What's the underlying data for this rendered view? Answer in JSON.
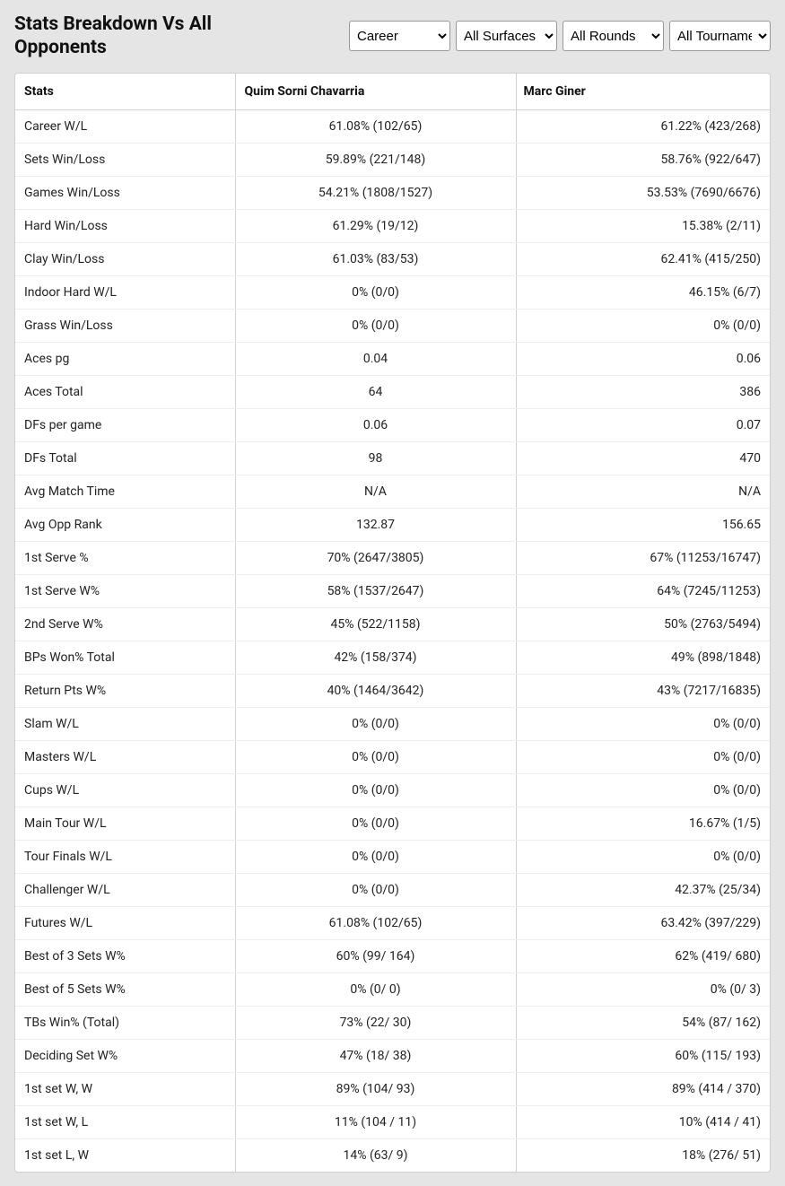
{
  "title": "Stats Breakdown Vs All Opponents",
  "filters": {
    "timeframe": {
      "selected": "Career",
      "options": [
        "Career"
      ]
    },
    "surface": {
      "selected": "All Surfaces",
      "options": [
        "All Surfaces"
      ]
    },
    "round": {
      "selected": "All Rounds",
      "options": [
        "All Rounds"
      ]
    },
    "tournament": {
      "selected": "All Tournaments",
      "options": [
        "All Tournaments"
      ]
    }
  },
  "table": {
    "columns": [
      "Stats",
      "Quim Sorni Chavarria",
      "Marc Giner"
    ],
    "rows": [
      [
        "Career W/L",
        "61.08% (102/65)",
        "61.22% (423/268)"
      ],
      [
        "Sets Win/Loss",
        "59.89% (221/148)",
        "58.76% (922/647)"
      ],
      [
        "Games Win/Loss",
        "54.21% (1808/1527)",
        "53.53% (7690/6676)"
      ],
      [
        "Hard Win/Loss",
        "61.29% (19/12)",
        "15.38% (2/11)"
      ],
      [
        "Clay Win/Loss",
        "61.03% (83/53)",
        "62.41% (415/250)"
      ],
      [
        "Indoor Hard W/L",
        "0% (0/0)",
        "46.15% (6/7)"
      ],
      [
        "Grass Win/Loss",
        "0% (0/0)",
        "0% (0/0)"
      ],
      [
        "Aces pg",
        "0.04",
        "0.06"
      ],
      [
        "Aces Total",
        "64",
        "386"
      ],
      [
        "DFs per game",
        "0.06",
        "0.07"
      ],
      [
        "DFs Total",
        "98",
        "470"
      ],
      [
        "Avg Match Time",
        "N/A",
        "N/A"
      ],
      [
        "Avg Opp Rank",
        "132.87",
        "156.65"
      ],
      [
        "1st Serve %",
        "70% (2647/3805)",
        "67% (11253/16747)"
      ],
      [
        "1st Serve W%",
        "58% (1537/2647)",
        "64% (7245/11253)"
      ],
      [
        "2nd Serve W%",
        "45% (522/1158)",
        "50% (2763/5494)"
      ],
      [
        "BPs Won% Total",
        "42% (158/374)",
        "49% (898/1848)"
      ],
      [
        "Return Pts W%",
        "40% (1464/3642)",
        "43% (7217/16835)"
      ],
      [
        "Slam W/L",
        "0% (0/0)",
        "0% (0/0)"
      ],
      [
        "Masters W/L",
        "0% (0/0)",
        "0% (0/0)"
      ],
      [
        "Cups W/L",
        "0% (0/0)",
        "0% (0/0)"
      ],
      [
        "Main Tour W/L",
        "0% (0/0)",
        "16.67% (1/5)"
      ],
      [
        "Tour Finals W/L",
        "0% (0/0)",
        "0% (0/0)"
      ],
      [
        "Challenger W/L",
        "0% (0/0)",
        "42.37% (25/34)"
      ],
      [
        "Futures W/L",
        "61.08% (102/65)",
        "63.42% (397/229)"
      ],
      [
        "Best of 3 Sets W%",
        "60% (99/ 164)",
        "62% (419/ 680)"
      ],
      [
        "Best of 5 Sets W%",
        "0% (0/ 0)",
        "0% (0/ 3)"
      ],
      [
        "TBs Win% (Total)",
        "73% (22/ 30)",
        "54% (87/ 162)"
      ],
      [
        "Deciding Set W%",
        "47% (18/ 38)",
        "60% (115/ 193)"
      ],
      [
        "1st set W, W",
        "89% (104/ 93)",
        "89% (414 / 370)"
      ],
      [
        "1st set W, L",
        "11% (104 / 11)",
        "10% (414 / 41)"
      ],
      [
        "1st set L, W",
        "14% (63/ 9)",
        "18% (276/ 51)"
      ]
    ]
  }
}
